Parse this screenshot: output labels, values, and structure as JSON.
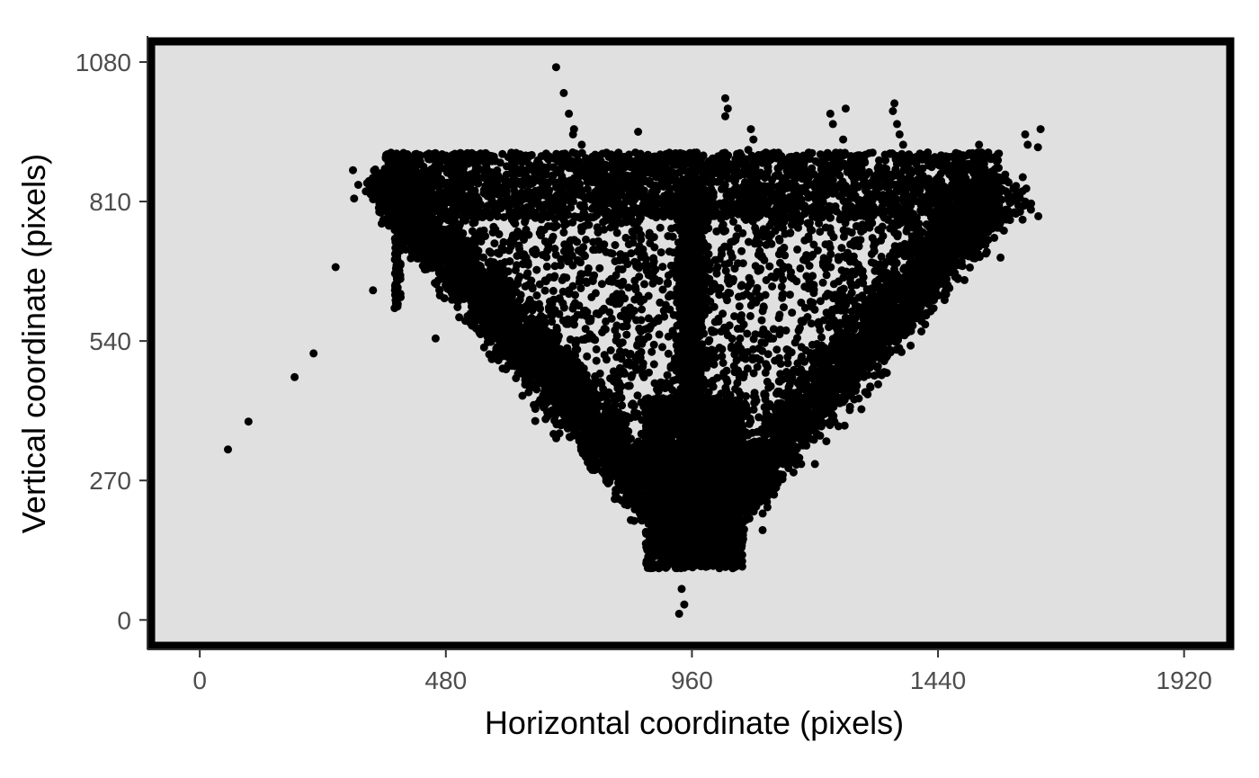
{
  "chart_data": {
    "type": "scatter",
    "title": "",
    "xlabel": "Horizontal coordinate (pixels)",
    "ylabel": "Vertical coordinate (pixels)",
    "xlim": [
      -95,
      2010
    ],
    "ylim": [
      -50,
      1120
    ],
    "x_ticks": [
      0,
      480,
      960,
      1440,
      1920
    ],
    "y_ticks": [
      0,
      270,
      540,
      810,
      1080
    ],
    "grid": false,
    "legend": "none",
    "panel_color": "#e0e0e0",
    "point_color": "#000000",
    "frame_color": "#000000",
    "points": [
      [
        55,
        330
      ],
      [
        95,
        384
      ],
      [
        185,
        470
      ],
      [
        222,
        516
      ],
      [
        265,
        683
      ],
      [
        338,
        638
      ],
      [
        460,
        545
      ],
      [
        695,
        1070
      ],
      [
        710,
        1020
      ],
      [
        720,
        980
      ],
      [
        730,
        950
      ],
      [
        728,
        940
      ],
      [
        745,
        920
      ],
      [
        855,
        945
      ],
      [
        1025,
        1010
      ],
      [
        1030,
        990
      ],
      [
        1025,
        975
      ],
      [
        1075,
        950
      ],
      [
        1080,
        930
      ],
      [
        1070,
        910
      ],
      [
        1090,
        900
      ],
      [
        1230,
        980
      ],
      [
        1260,
        990
      ],
      [
        1235,
        960
      ],
      [
        1255,
        930
      ],
      [
        1355,
        1000
      ],
      [
        1352,
        985
      ],
      [
        1360,
        960
      ],
      [
        1365,
        940
      ],
      [
        1372,
        920
      ],
      [
        1420,
        905
      ],
      [
        1520,
        920
      ],
      [
        1525,
        905
      ],
      [
        1610,
        940
      ],
      [
        1615,
        920
      ],
      [
        1640,
        950
      ],
      [
        1635,
        915
      ],
      [
        1605,
        830
      ],
      [
        1610,
        810
      ],
      [
        1600,
        790
      ],
      [
        1605,
        775
      ],
      [
        940,
        60
      ],
      [
        945,
        30
      ],
      [
        935,
        12
      ],
      [
        880,
        110
      ],
      [
        690,
        360
      ],
      [
        1335,
        480
      ]
    ],
    "dense_regions": [
      {
        "shape": "band",
        "x": [
          362,
          1560
        ],
        "y": [
          778,
          905
        ],
        "count": 2600
      },
      {
        "shape": "line",
        "from": [
          362,
          855
        ],
        "to": [
          960,
          150
        ],
        "spread": 85,
        "count": 3400
      },
      {
        "shape": "line",
        "from": [
          1560,
          840
        ],
        "to": [
          960,
          150
        ],
        "spread": 95,
        "count": 2800
      },
      {
        "shape": "line",
        "from": [
          960,
          850
        ],
        "to": [
          960,
          150
        ],
        "spread": 40,
        "count": 1700
      },
      {
        "shape": "blob",
        "x": [
          870,
          1060
        ],
        "y": [
          100,
          430
        ],
        "count": 2200
      },
      {
        "shape": "triangle",
        "vertices": [
          [
            470,
            780
          ],
          [
            1480,
            780
          ],
          [
            960,
            200
          ]
        ],
        "count": 1500
      },
      {
        "shape": "column",
        "x": [
          380,
          392
        ],
        "y": [
          600,
          840
        ],
        "count": 90
      }
    ]
  }
}
